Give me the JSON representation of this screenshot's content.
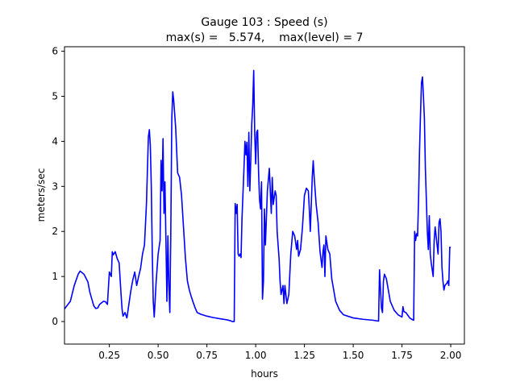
{
  "chart_data": {
    "type": "line",
    "title_line1": "Gauge 103 : Speed (s)",
    "title_line2": "max(s) =   5.574,    max(level) = 7",
    "xlabel": "hours",
    "ylabel": "meters/sec",
    "xlim": [
      0.02,
      2.07
    ],
    "ylim": [
      -0.5,
      6.1
    ],
    "xticks": [
      0.25,
      0.5,
      0.75,
      1.0,
      1.25,
      1.5,
      1.75,
      2.0
    ],
    "xtick_labels": [
      "0.25",
      "0.50",
      "0.75",
      "1.00",
      "1.25",
      "1.50",
      "1.75",
      "2.00"
    ],
    "yticks": [
      0,
      1,
      2,
      3,
      4,
      5,
      6
    ],
    "ytick_labels": [
      "0",
      "1",
      "2",
      "3",
      "4",
      "5",
      "6"
    ],
    "grid": false,
    "series": [
      {
        "color": "#0000ff",
        "points": [
          [
            0.02,
            0.28
          ],
          [
            0.05,
            0.45
          ],
          [
            0.07,
            0.8
          ],
          [
            0.09,
            1.05
          ],
          [
            0.1,
            1.12
          ],
          [
            0.12,
            1.05
          ],
          [
            0.14,
            0.88
          ],
          [
            0.15,
            0.65
          ],
          [
            0.16,
            0.5
          ],
          [
            0.17,
            0.35
          ],
          [
            0.18,
            0.29
          ],
          [
            0.19,
            0.3
          ],
          [
            0.2,
            0.38
          ],
          [
            0.22,
            0.45
          ],
          [
            0.23,
            0.44
          ],
          [
            0.24,
            0.38
          ],
          [
            0.25,
            1.1
          ],
          [
            0.26,
            1.0
          ],
          [
            0.265,
            1.55
          ],
          [
            0.27,
            1.48
          ],
          [
            0.28,
            1.55
          ],
          [
            0.29,
            1.4
          ],
          [
            0.3,
            1.3
          ],
          [
            0.31,
            0.6
          ],
          [
            0.315,
            0.28
          ],
          [
            0.32,
            0.12
          ],
          [
            0.33,
            0.2
          ],
          [
            0.34,
            0.08
          ],
          [
            0.35,
            0.38
          ],
          [
            0.36,
            0.68
          ],
          [
            0.37,
            0.92
          ],
          [
            0.38,
            1.1
          ],
          [
            0.39,
            0.8
          ],
          [
            0.4,
            1.0
          ],
          [
            0.41,
            1.18
          ],
          [
            0.42,
            1.5
          ],
          [
            0.43,
            1.7
          ],
          [
            0.44,
            2.6
          ],
          [
            0.45,
            4.1
          ],
          [
            0.455,
            4.26
          ],
          [
            0.46,
            3.9
          ],
          [
            0.465,
            3.0
          ],
          [
            0.47,
            1.5
          ],
          [
            0.475,
            0.45
          ],
          [
            0.48,
            0.1
          ],
          [
            0.49,
            0.9
          ],
          [
            0.5,
            1.5
          ],
          [
            0.51,
            1.8
          ],
          [
            0.515,
            3.58
          ],
          [
            0.52,
            2.9
          ],
          [
            0.525,
            4.06
          ],
          [
            0.53,
            2.4
          ],
          [
            0.535,
            3.1
          ],
          [
            0.54,
            1.8
          ],
          [
            0.545,
            0.45
          ],
          [
            0.55,
            1.9
          ],
          [
            0.555,
            0.8
          ],
          [
            0.56,
            0.2
          ],
          [
            0.565,
            2.0
          ],
          [
            0.57,
            4.5
          ],
          [
            0.575,
            5.1
          ],
          [
            0.58,
            4.9
          ],
          [
            0.59,
            4.3
          ],
          [
            0.6,
            3.3
          ],
          [
            0.61,
            3.2
          ],
          [
            0.62,
            2.8
          ],
          [
            0.63,
            2.1
          ],
          [
            0.64,
            1.4
          ],
          [
            0.65,
            0.9
          ],
          [
            0.66,
            0.7
          ],
          [
            0.67,
            0.55
          ],
          [
            0.68,
            0.42
          ],
          [
            0.69,
            0.3
          ],
          [
            0.7,
            0.2
          ],
          [
            0.72,
            0.16
          ],
          [
            0.75,
            0.12
          ],
          [
            0.78,
            0.09
          ],
          [
            0.82,
            0.06
          ],
          [
            0.85,
            0.04
          ],
          [
            0.87,
            0.02
          ],
          [
            0.88,
            0.0
          ],
          [
            0.89,
            0.0
          ],
          [
            0.895,
            2.62
          ],
          [
            0.9,
            2.4
          ],
          [
            0.905,
            2.6
          ],
          [
            0.91,
            1.5
          ],
          [
            0.915,
            1.45
          ],
          [
            0.92,
            1.5
          ],
          [
            0.925,
            1.42
          ],
          [
            0.93,
            2.3
          ],
          [
            0.94,
            3.4
          ],
          [
            0.945,
            4.0
          ],
          [
            0.95,
            3.7
          ],
          [
            0.955,
            3.98
          ],
          [
            0.96,
            3.0
          ],
          [
            0.965,
            4.2
          ],
          [
            0.97,
            2.9
          ],
          [
            0.975,
            3.6
          ],
          [
            0.98,
            4.4
          ],
          [
            0.985,
            4.8
          ],
          [
            0.99,
            5.574
          ],
          [
            0.995,
            4.2
          ],
          [
            1.0,
            3.5
          ],
          [
            1.005,
            4.2
          ],
          [
            1.01,
            4.25
          ],
          [
            1.015,
            3.3
          ],
          [
            1.02,
            2.7
          ],
          [
            1.025,
            2.5
          ],
          [
            1.03,
            3.1
          ],
          [
            1.035,
            0.5
          ],
          [
            1.04,
            0.9
          ],
          [
            1.045,
            2.5
          ],
          [
            1.05,
            1.7
          ],
          [
            1.06,
            2.9
          ],
          [
            1.07,
            3.4
          ],
          [
            1.08,
            2.4
          ],
          [
            1.085,
            3.2
          ],
          [
            1.09,
            2.6
          ],
          [
            1.1,
            2.9
          ],
          [
            1.105,
            2.8
          ],
          [
            1.11,
            2.0
          ],
          [
            1.12,
            1.4
          ],
          [
            1.125,
            0.9
          ],
          [
            1.13,
            0.6
          ],
          [
            1.14,
            0.8
          ],
          [
            1.145,
            0.4
          ],
          [
            1.15,
            0.8
          ],
          [
            1.16,
            0.4
          ],
          [
            1.17,
            0.6
          ],
          [
            1.18,
            1.5
          ],
          [
            1.19,
            2.0
          ],
          [
            1.2,
            1.9
          ],
          [
            1.21,
            1.6
          ],
          [
            1.215,
            1.8
          ],
          [
            1.22,
            1.45
          ],
          [
            1.23,
            1.6
          ],
          [
            1.24,
            2.1
          ],
          [
            1.25,
            2.8
          ],
          [
            1.26,
            2.96
          ],
          [
            1.27,
            2.9
          ],
          [
            1.275,
            2.5
          ],
          [
            1.28,
            2.0
          ],
          [
            1.29,
            3.2
          ],
          [
            1.295,
            3.57
          ],
          [
            1.3,
            3.2
          ],
          [
            1.31,
            2.6
          ],
          [
            1.32,
            2.2
          ],
          [
            1.33,
            1.55
          ],
          [
            1.34,
            1.2
          ],
          [
            1.345,
            1.55
          ],
          [
            1.35,
            1.7
          ],
          [
            1.355,
            1.0
          ],
          [
            1.36,
            1.9
          ],
          [
            1.37,
            1.6
          ],
          [
            1.38,
            1.5
          ],
          [
            1.39,
            0.95
          ],
          [
            1.4,
            0.7
          ],
          [
            1.41,
            0.45
          ],
          [
            1.43,
            0.25
          ],
          [
            1.45,
            0.15
          ],
          [
            1.5,
            0.08
          ],
          [
            1.55,
            0.05
          ],
          [
            1.6,
            0.03
          ],
          [
            1.63,
            0.01
          ],
          [
            1.635,
            1.15
          ],
          [
            1.64,
            0.7
          ],
          [
            1.645,
            0.3
          ],
          [
            1.65,
            0.2
          ],
          [
            1.655,
            0.9
          ],
          [
            1.66,
            1.05
          ],
          [
            1.67,
            0.95
          ],
          [
            1.68,
            0.7
          ],
          [
            1.69,
            0.45
          ],
          [
            1.71,
            0.25
          ],
          [
            1.73,
            0.15
          ],
          [
            1.75,
            0.1
          ],
          [
            1.755,
            0.33
          ],
          [
            1.76,
            0.22
          ],
          [
            1.77,
            0.2
          ],
          [
            1.78,
            0.14
          ],
          [
            1.79,
            0.08
          ],
          [
            1.8,
            0.05
          ],
          [
            1.81,
            0.03
          ],
          [
            1.815,
            2.0
          ],
          [
            1.82,
            1.8
          ],
          [
            1.825,
            1.95
          ],
          [
            1.83,
            1.9
          ],
          [
            1.835,
            2.7
          ],
          [
            1.84,
            3.8
          ],
          [
            1.845,
            4.6
          ],
          [
            1.85,
            5.3
          ],
          [
            1.855,
            5.43
          ],
          [
            1.86,
            5.0
          ],
          [
            1.865,
            4.5
          ],
          [
            1.87,
            3.4
          ],
          [
            1.88,
            2.0
          ],
          [
            1.885,
            1.6
          ],
          [
            1.89,
            2.35
          ],
          [
            1.895,
            1.5
          ],
          [
            1.9,
            1.3
          ],
          [
            1.91,
            1.0
          ],
          [
            1.915,
            1.8
          ],
          [
            1.92,
            2.1
          ],
          [
            1.93,
            1.7
          ],
          [
            1.935,
            1.5
          ],
          [
            1.94,
            2.2
          ],
          [
            1.945,
            2.28
          ],
          [
            1.95,
            2.0
          ],
          [
            1.955,
            1.2
          ],
          [
            1.96,
            0.9
          ],
          [
            1.965,
            0.7
          ],
          [
            1.97,
            0.8
          ],
          [
            1.98,
            0.85
          ],
          [
            1.985,
            0.9
          ],
          [
            1.99,
            0.8
          ],
          [
            1.995,
            1.65
          ],
          [
            2.0,
            1.64
          ]
        ]
      }
    ]
  }
}
